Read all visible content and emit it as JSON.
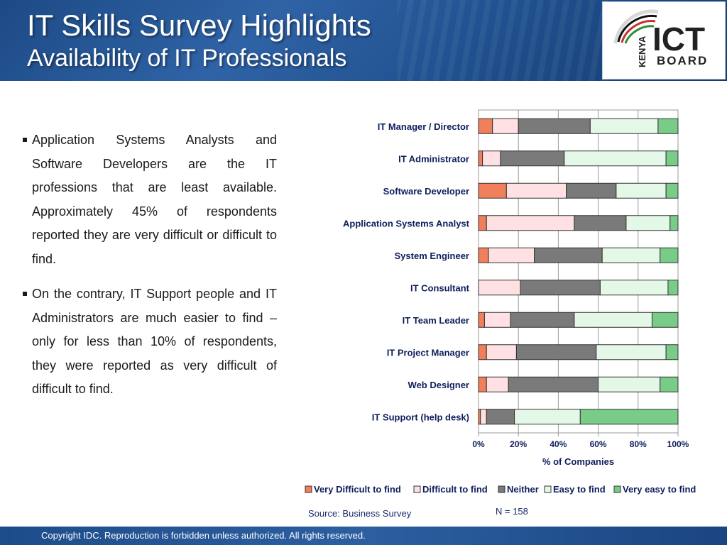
{
  "header": {
    "title": "IT Skills Survey Highlights",
    "subtitle": "Availability of IT Professionals",
    "logo": {
      "vertical_text": "KENYA",
      "main_text": "ICT",
      "sub_text": "BOARD"
    }
  },
  "bullets": [
    "Application Systems Analysts and Software Developers are the IT professions that are least available. Approximately 45% of respondents reported they are very difficult or difficult to find.",
    "On the contrary, IT Support people and IT Administrators are much easier to find – only for less than 10% of respondents, they were reported as very difficult of difficult to find."
  ],
  "chart_data": {
    "type": "bar",
    "orientation": "horizontal",
    "stacked": "percent",
    "categories": [
      "IT Manager / Director",
      "IT Administrator",
      "Software Developer",
      "Application Systems Analyst",
      "System Engineer",
      "IT Consultant",
      "IT Team Leader",
      "IT Project Manager",
      "Web Designer",
      "IT Support (help desk)"
    ],
    "series": [
      {
        "name": "Very Difficult to find",
        "color": "#f07f5b",
        "values": [
          7,
          2,
          14,
          4,
          5,
          0,
          3,
          4,
          4,
          1
        ]
      },
      {
        "name": "Difficult to find",
        "color": "#ffe0e3",
        "values": [
          13,
          9,
          30,
          44,
          23,
          21,
          13,
          15,
          11,
          3
        ]
      },
      {
        "name": "Neither",
        "color": "#7a7a7a",
        "values": [
          36,
          32,
          25,
          26,
          34,
          40,
          32,
          40,
          45,
          14
        ]
      },
      {
        "name": "Easy to find",
        "color": "#e4f8e7",
        "values": [
          34,
          51,
          25,
          22,
          29,
          34,
          39,
          35,
          31,
          33
        ]
      },
      {
        "name": "Very easy to find",
        "color": "#79cc88",
        "values": [
          10,
          6,
          6,
          4,
          9,
          5,
          13,
          6,
          9,
          49
        ]
      }
    ],
    "x_ticks": [
      "0%",
      "20%",
      "40%",
      "60%",
      "80%",
      "100%"
    ],
    "xlim": [
      0,
      100
    ],
    "xlabel": "% of Companies",
    "ylabel": "",
    "legend_position": "bottom"
  },
  "source": "Source: Business Survey",
  "n_value": "N = 158",
  "footer": "Copyright IDC. Reproduction is forbidden unless authorized. All rights reserved."
}
